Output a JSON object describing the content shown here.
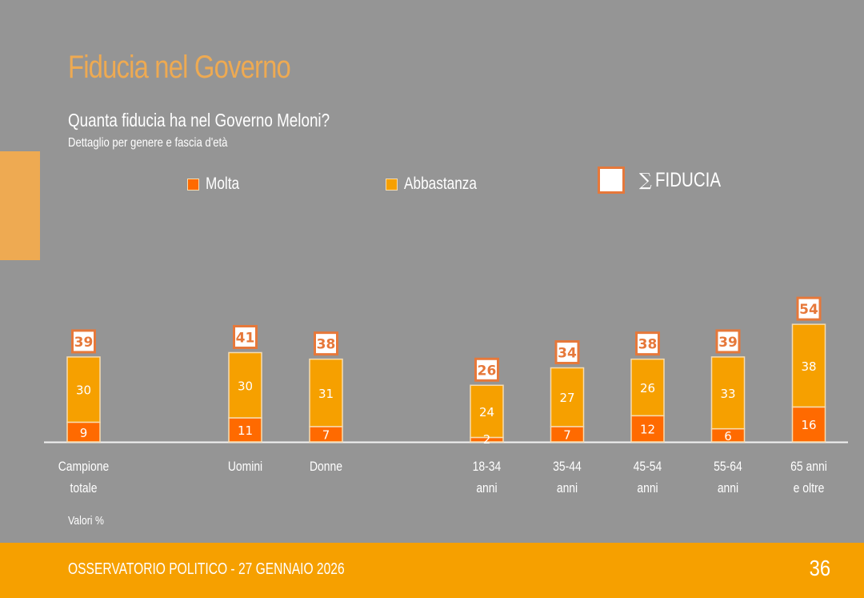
{
  "header": {
    "title": "Fiducia nel Governo",
    "question": "Quanta fiducia ha nel Governo Meloni?",
    "detail": "Dettaglio per genere e fascia d'età"
  },
  "legend": {
    "molta": "Molta",
    "abbastanza": "Abbastanza",
    "sigma": "∑",
    "fiducia": "FIDUCIA"
  },
  "note": "Valori %",
  "footer": {
    "text": "OSSERVATORIO POLITICO - 27 GENNAIO 2026",
    "page": "36"
  },
  "colors": {
    "molta": "#ff6a00",
    "abbastanza": "#f6a000",
    "total_border": "#e6783a",
    "title": "#eeaa52"
  },
  "chart_data": {
    "type": "bar",
    "stacked": true,
    "title": "Quanta fiducia ha nel Governo Meloni?",
    "categories": [
      [
        "Campione",
        "totale"
      ],
      [
        "Uomini"
      ],
      [
        "Donne"
      ],
      [
        "18-34",
        "anni"
      ],
      [
        "35-44",
        "anni"
      ],
      [
        "45-54",
        "anni"
      ],
      [
        "55-64",
        "anni"
      ],
      [
        "65 anni",
        "e oltre"
      ]
    ],
    "series": [
      {
        "name": "Molta",
        "values": [
          9,
          11,
          7,
          2,
          7,
          12,
          6,
          16
        ]
      },
      {
        "name": "Abbastanza",
        "values": [
          30,
          30,
          31,
          24,
          27,
          26,
          33,
          38
        ]
      }
    ],
    "totals_label": "∑ FIDUCIA",
    "totals": [
      39,
      41,
      38,
      26,
      34,
      38,
      39,
      54
    ],
    "ylim": [
      0,
      54
    ],
    "unit": "Valori %"
  }
}
